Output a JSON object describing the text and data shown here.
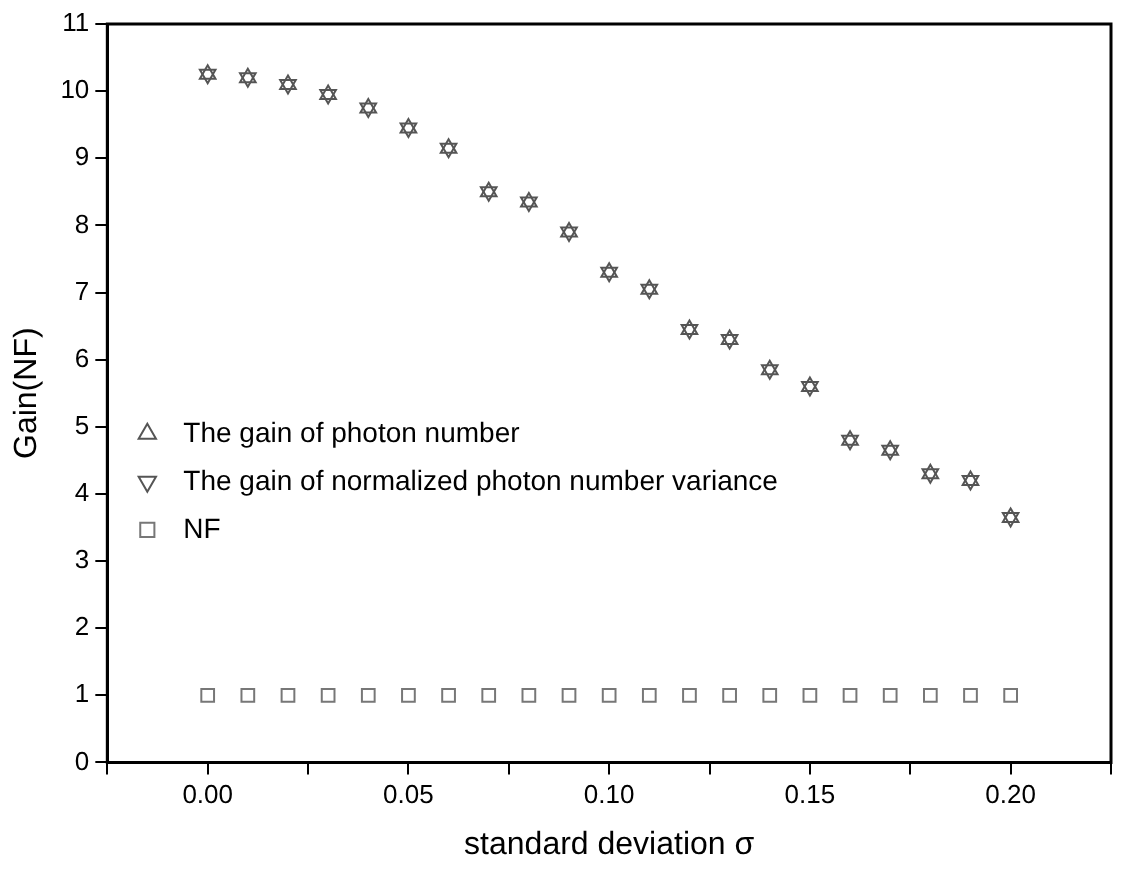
{
  "chart_data": {
    "type": "scatter",
    "xlabel": "standard deviation σ",
    "ylabel": "Gain(NF)",
    "x": [
      0,
      0.01,
      0.02,
      0.03,
      0.04,
      0.05,
      0.06,
      0.07,
      0.08,
      0.09,
      0.1,
      0.11,
      0.12,
      0.13,
      0.14,
      0.15,
      0.16,
      0.17,
      0.18,
      0.19,
      0.2
    ],
    "series": [
      {
        "name": "The gain of photon number",
        "color": "#555555",
        "marker": "triangle",
        "values": [
          10.25,
          10.2,
          10.1,
          9.95,
          9.75,
          9.45,
          9.15,
          8.5,
          8.35,
          7.9,
          7.3,
          7.05,
          6.45,
          6.3,
          5.85,
          5.6,
          4.8,
          4.65,
          4.3,
          4.2,
          3.65
        ]
      },
      {
        "name": "The gain of normalized photon number variance",
        "color": "#555555",
        "marker": "triangle-down",
        "values": [
          10.25,
          10.2,
          10.1,
          9.95,
          9.75,
          9.45,
          9.15,
          8.5,
          8.35,
          7.9,
          7.3,
          7.05,
          6.45,
          6.3,
          5.85,
          5.6,
          4.8,
          4.65,
          4.3,
          4.2,
          3.65
        ]
      },
      {
        "name": "NF",
        "color": "#777777",
        "marker": "square",
        "values": [
          1,
          1,
          1,
          1,
          1,
          1,
          1,
          1,
          1,
          1,
          1,
          1,
          1,
          1,
          1,
          1,
          1,
          1,
          1,
          1,
          1
        ]
      }
    ],
    "xlim": [
      -0.025,
      0.225
    ],
    "xticks": [
      {
        "value": -0.025,
        "label": null
      },
      {
        "value": 0,
        "label": "0.00"
      },
      {
        "value": 0.025,
        "label": null
      },
      {
        "value": 0.05,
        "label": "0.05"
      },
      {
        "value": 0.075,
        "label": null
      },
      {
        "value": 0.1,
        "label": "0.10"
      },
      {
        "value": 0.125,
        "label": null
      },
      {
        "value": 0.15,
        "label": "0.15"
      },
      {
        "value": 0.175,
        "label": null
      },
      {
        "value": 0.2,
        "label": "0.20"
      },
      {
        "value": 0.225,
        "label": null
      }
    ],
    "ylim": [
      0,
      11
    ],
    "yticks": [
      0,
      1,
      2,
      3,
      4,
      5,
      6,
      7,
      8,
      9,
      10,
      11
    ],
    "grid": false,
    "legend": "left"
  }
}
